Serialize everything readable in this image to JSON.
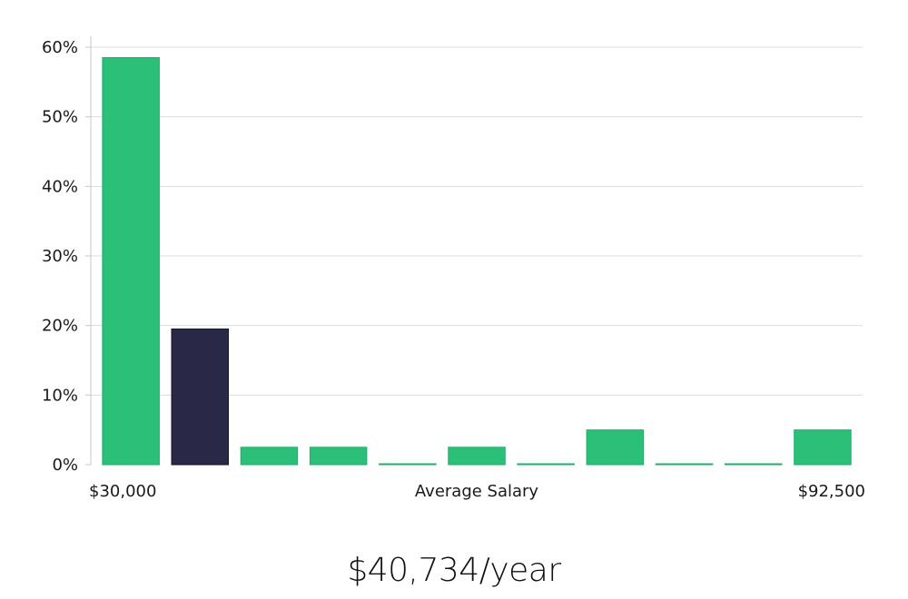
{
  "chart_data": {
    "type": "bar",
    "title": "",
    "xlabel": "Average Salary",
    "ylabel": "",
    "x_min_label": "$30,000",
    "x_max_label": "$92,500",
    "ylim": [
      0,
      0.6
    ],
    "y_ticks": [
      0,
      0.1,
      0.2,
      0.3,
      0.4,
      0.5,
      0.6
    ],
    "y_tick_labels": [
      "0%",
      "10%",
      "20%",
      "30%",
      "40%",
      "50%",
      "60%"
    ],
    "grid": true,
    "values": [
      0.585,
      0.195,
      0.025,
      0.025,
      0.001,
      0.025,
      0.001,
      0.05,
      0.001,
      0.001,
      0.05
    ],
    "highlight_index": 1,
    "colors": {
      "bar": "#2bbf77",
      "bar_edge": "#1fae68",
      "highlight": "#292846",
      "highlight_edge": "#15142e",
      "grid": "#dcdcdc",
      "axis": "#c8c8c8"
    }
  },
  "summary": {
    "salary_text": "$40,734/year"
  }
}
